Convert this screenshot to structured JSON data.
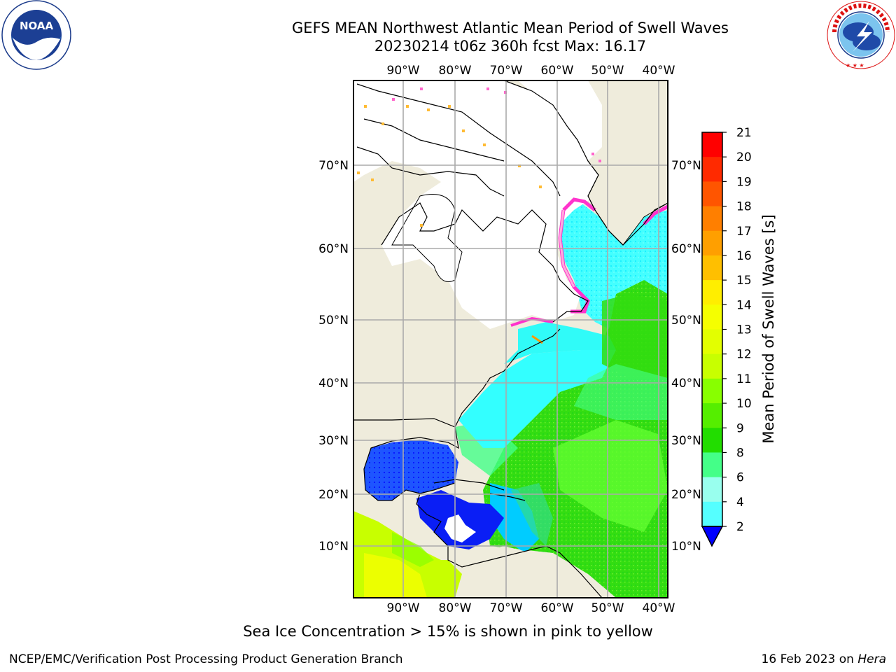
{
  "header": {
    "title_line1": "GEFS MEAN Northwest Atlantic Mean Period of Swell Waves",
    "title_line2": "20230214 t06z 360h fcst   Max: 16.17"
  },
  "logos": {
    "left": "NOAA",
    "left_ring_text": "NATIONAL OCEANIC AND ATMOSPHERIC ADMINISTRATION · U.S. DEPARTMENT OF COMMERCE",
    "right_ring_text": "NATIONAL WEATHER SERVICE"
  },
  "map": {
    "lon_labels": [
      "90°W",
      "80°W",
      "70°W",
      "60°W",
      "50°W",
      "40°W"
    ],
    "lat_labels": [
      "70°N",
      "60°N",
      "50°N",
      "40°N",
      "30°N",
      "20°N",
      "10°N"
    ],
    "gridlines": true,
    "region": "Northwest Atlantic"
  },
  "colorbar": {
    "label": "Mean Period of Swell Waves [s]",
    "ticks": [
      "21",
      "20",
      "19",
      "18",
      "17",
      "16",
      "15",
      "14",
      "13",
      "12",
      "11",
      "10",
      "9",
      "8",
      "6",
      "4",
      "2"
    ],
    "colors": [
      "#ff0000",
      "#ff2a00",
      "#ff5500",
      "#ff7f00",
      "#ff9f00",
      "#ffbf00",
      "#ffee00",
      "#f5ff00",
      "#e3ff00",
      "#c8ff00",
      "#88ff00",
      "#55ee00",
      "#22dd00",
      "#44ff88",
      "#99ffee",
      "#55ffff",
      "#00ffff",
      "#0099ff",
      "#0044ff"
    ],
    "extend_min_color": "#0000ff"
  },
  "caption": "Sea Ice Concentration > 15% is shown in pink to yellow",
  "footer": {
    "left": "NCEP/EMC/Verification Post Processing Product Generation Branch",
    "right_prefix": "16 Feb 2023 on ",
    "right_host": "Hera"
  }
}
